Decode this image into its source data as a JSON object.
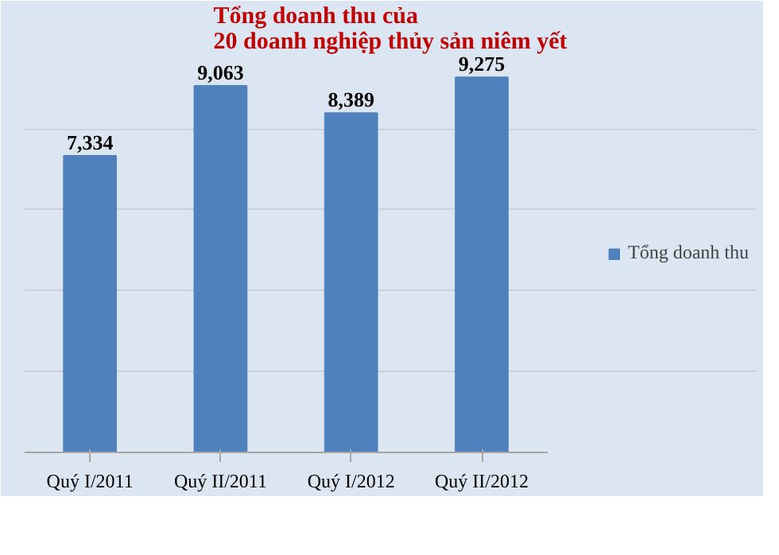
{
  "chart_data": {
    "type": "bar",
    "title": "Tổng doanh thu của\n20 doanh nghiệp thủy sản niêm yết",
    "categories": [
      "Quý I/2011",
      "Quý II/2011",
      "Quý I/2012",
      "Quý II/2012"
    ],
    "series": [
      {
        "name": "Tổng doanh thu",
        "color": "#4f81bd",
        "values": [
          7334,
          9063,
          8389,
          9275
        ],
        "value_labels": [
          "7,334",
          "9,063",
          "8,389",
          "9,275"
        ]
      }
    ],
    "tick_labels": "x",
    "grid": "y",
    "legend": "right"
  }
}
